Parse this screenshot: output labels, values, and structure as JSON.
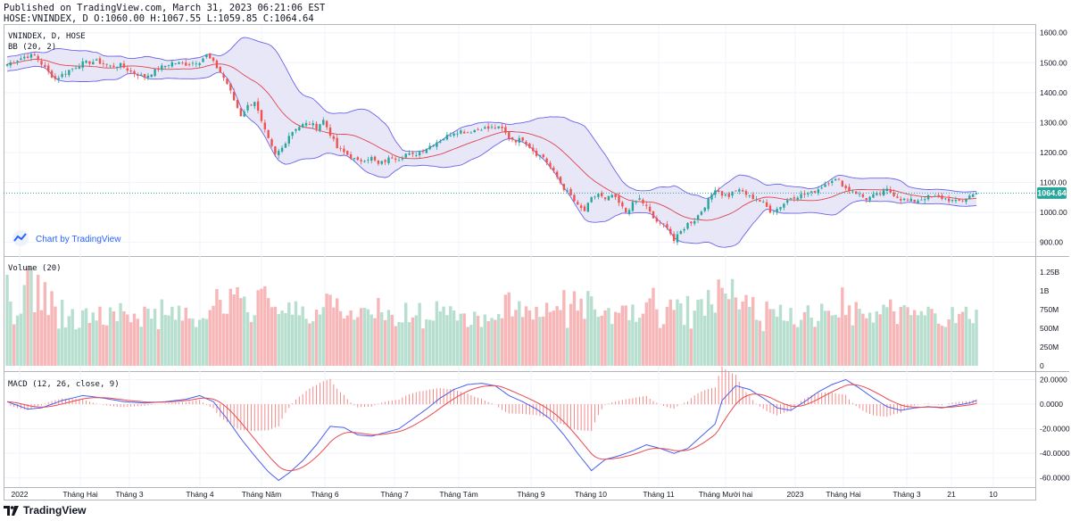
{
  "header": {
    "published": "Published on TradingView.com, March 31, 2023 06:21:06 EST",
    "symbol_line": "HOSE:VNINDEX, D O:1060.00 H:1067.55 L:1059.85 C:1064.64"
  },
  "legend": {
    "symbol": "VNINDEX, D, HOSE",
    "bb": "BB (20, 2)",
    "volume": "Volume (20)",
    "macd": "MACD (12, 26, close, 9)"
  },
  "watermark": "Chart by TradingView",
  "footer": {
    "brand": "TradingView"
  },
  "colors": {
    "up": "#26a69a",
    "down": "#ef5350",
    "vol_up": "#b7dfcf",
    "vol_down": "#f7b6b8",
    "bb_band": "#6a63e8",
    "bb_fill": "#e6e4f6",
    "bb_basis": "#e0434e",
    "macd": "#4a5ef0",
    "signal": "#e84a52",
    "last_price_bg": "#26a69a"
  },
  "chart_data": {
    "type": "candlestick",
    "title": "VNINDEX, D, HOSE",
    "last_price": 1064.64,
    "ohlc_last": {
      "open": 1060.0,
      "high": 1067.55,
      "low": 1059.85,
      "close": 1064.64
    },
    "x_tick_labels": [
      "2022",
      "Tháng Hai",
      "Tháng 3",
      "Tháng 4",
      "Tháng Năm",
      "Tháng 6",
      "Tháng 7",
      "Tháng Tám",
      "Tháng 9",
      "Tháng 10",
      "Tháng 11",
      "Tháng Mười hai",
      "2023",
      "Tháng Hai",
      "Tháng 3",
      "21",
      "10"
    ],
    "price_axis": {
      "ticks": [
        "1600.00",
        "1500.00",
        "1400.00",
        "1300.00",
        "1200.00",
        "1100.00",
        "1000.00",
        "900.00"
      ],
      "ylim": [
        860,
        1620
      ]
    },
    "volume_axis": {
      "ticks": [
        "1.25B",
        "1B",
        "750M",
        "500M",
        "250M",
        "0"
      ]
    },
    "macd_axis": {
      "ticks": [
        "20.0000",
        "0.0000",
        "-20.0000",
        "-40.0000",
        "-60.0000"
      ],
      "ylim": [
        -66,
        24
      ]
    },
    "close_anchors": [
      [
        0,
        1495
      ],
      [
        5,
        1520
      ],
      [
        8,
        1525
      ],
      [
        12,
        1468
      ],
      [
        14,
        1445
      ],
      [
        18,
        1475
      ],
      [
        22,
        1498
      ],
      [
        26,
        1505
      ],
      [
        30,
        1488
      ],
      [
        33,
        1492
      ],
      [
        36,
        1470
      ],
      [
        40,
        1452
      ],
      [
        44,
        1480
      ],
      [
        48,
        1500
      ],
      [
        52,
        1495
      ],
      [
        56,
        1505
      ],
      [
        58,
        1525
      ],
      [
        60,
        1500
      ],
      [
        62,
        1468
      ],
      [
        64,
        1430
      ],
      [
        66,
        1375
      ],
      [
        68,
        1325
      ],
      [
        70,
        1355
      ],
      [
        72,
        1372
      ],
      [
        74,
        1300
      ],
      [
        76,
        1242
      ],
      [
        78,
        1192
      ],
      [
        80,
        1215
      ],
      [
        82,
        1258
      ],
      [
        84,
        1282
      ],
      [
        86,
        1292
      ],
      [
        88,
        1298
      ],
      [
        90,
        1285
      ],
      [
        92,
        1308
      ],
      [
        94,
        1262
      ],
      [
        96,
        1215
      ],
      [
        98,
        1200
      ],
      [
        100,
        1185
      ],
      [
        102,
        1170
      ],
      [
        104,
        1178
      ],
      [
        106,
        1182
      ],
      [
        108,
        1160
      ],
      [
        110,
        1172
      ],
      [
        112,
        1185
      ],
      [
        114,
        1180
      ],
      [
        116,
        1195
      ],
      [
        118,
        1190
      ],
      [
        120,
        1202
      ],
      [
        122,
        1215
      ],
      [
        124,
        1230
      ],
      [
        126,
        1242
      ],
      [
        128,
        1255
      ],
      [
        130,
        1268
      ],
      [
        132,
        1272
      ],
      [
        134,
        1268
      ],
      [
        136,
        1275
      ],
      [
        138,
        1282
      ],
      [
        140,
        1280
      ],
      [
        142,
        1285
      ],
      [
        144,
        1278
      ],
      [
        146,
        1250
      ],
      [
        148,
        1240
      ],
      [
        150,
        1245
      ],
      [
        152,
        1220
      ],
      [
        154,
        1195
      ],
      [
        156,
        1185
      ],
      [
        158,
        1150
      ],
      [
        160,
        1118
      ],
      [
        162,
        1080
      ],
      [
        164,
        1055
      ],
      [
        166,
        1020
      ],
      [
        168,
        1005
      ],
      [
        170,
        1045
      ],
      [
        172,
        1062
      ],
      [
        174,
        1040
      ],
      [
        176,
        1058
      ],
      [
        178,
        1030
      ],
      [
        180,
        1000
      ],
      [
        182,
        1028
      ],
      [
        184,
        1045
      ],
      [
        186,
        1018
      ],
      [
        188,
        980
      ],
      [
        190,
        960
      ],
      [
        192,
        955
      ],
      [
        194,
        905
      ],
      [
        196,
        935
      ],
      [
        198,
        962
      ],
      [
        200,
        975
      ],
      [
        202,
        1005
      ],
      [
        204,
        1040
      ],
      [
        206,
        1080
      ],
      [
        208,
        1060
      ],
      [
        210,
        1055
      ],
      [
        212,
        1075
      ],
      [
        214,
        1068
      ],
      [
        216,
        1052
      ],
      [
        218,
        1045
      ],
      [
        220,
        1030
      ],
      [
        222,
        1005
      ],
      [
        224,
        1012
      ],
      [
        226,
        1030
      ],
      [
        228,
        1050
      ],
      [
        230,
        1055
      ],
      [
        232,
        1060
      ],
      [
        234,
        1065
      ],
      [
        236,
        1078
      ],
      [
        238,
        1095
      ],
      [
        240,
        1110
      ],
      [
        242,
        1105
      ],
      [
        244,
        1080
      ],
      [
        246,
        1072
      ],
      [
        248,
        1058
      ],
      [
        250,
        1045
      ],
      [
        252,
        1055
      ],
      [
        254,
        1062
      ],
      [
        256,
        1075
      ],
      [
        258,
        1060
      ],
      [
        260,
        1045
      ],
      [
        262,
        1040
      ],
      [
        264,
        1038
      ],
      [
        266,
        1045
      ],
      [
        268,
        1052
      ],
      [
        270,
        1050
      ],
      [
        272,
        1048
      ],
      [
        274,
        1042
      ],
      [
        276,
        1035
      ],
      [
        278,
        1040
      ],
      [
        280,
        1055
      ],
      [
        282,
        1064.64
      ]
    ],
    "macd_anchors": [
      [
        0,
        2
      ],
      [
        6,
        -4
      ],
      [
        10,
        -3
      ],
      [
        16,
        3
      ],
      [
        22,
        7
      ],
      [
        28,
        5
      ],
      [
        34,
        2
      ],
      [
        40,
        1
      ],
      [
        46,
        2
      ],
      [
        52,
        4
      ],
      [
        56,
        7
      ],
      [
        60,
        2
      ],
      [
        64,
        -12
      ],
      [
        68,
        -28
      ],
      [
        72,
        -42
      ],
      [
        76,
        -55
      ],
      [
        79,
        -62
      ],
      [
        82,
        -56
      ],
      [
        86,
        -46
      ],
      [
        90,
        -33
      ],
      [
        94,
        -18
      ],
      [
        98,
        -19
      ],
      [
        102,
        -25
      ],
      [
        106,
        -26
      ],
      [
        110,
        -23
      ],
      [
        114,
        -20
      ],
      [
        118,
        -12
      ],
      [
        122,
        -4
      ],
      [
        126,
        5
      ],
      [
        130,
        12
      ],
      [
        134,
        16
      ],
      [
        138,
        17
      ],
      [
        142,
        15
      ],
      [
        146,
        7
      ],
      [
        150,
        2
      ],
      [
        154,
        -4
      ],
      [
        158,
        -12
      ],
      [
        162,
        -25
      ],
      [
        166,
        -40
      ],
      [
        170,
        -54
      ],
      [
        174,
        -45
      ],
      [
        178,
        -42
      ],
      [
        182,
        -38
      ],
      [
        186,
        -33
      ],
      [
        190,
        -36
      ],
      [
        194,
        -40
      ],
      [
        198,
        -36
      ],
      [
        202,
        -26
      ],
      [
        206,
        -16
      ],
      [
        208,
        3
      ],
      [
        212,
        15
      ],
      [
        216,
        12
      ],
      [
        220,
        5
      ],
      [
        224,
        -3
      ],
      [
        228,
        -5
      ],
      [
        232,
        2
      ],
      [
        236,
        10
      ],
      [
        240,
        16
      ],
      [
        244,
        20
      ],
      [
        248,
        13
      ],
      [
        252,
        5
      ],
      [
        256,
        -2
      ],
      [
        260,
        -5
      ],
      [
        264,
        -3
      ],
      [
        268,
        -2
      ],
      [
        272,
        -3
      ],
      [
        276,
        -1
      ],
      [
        280,
        1
      ],
      [
        282,
        3
      ]
    ],
    "bars": 283
  }
}
